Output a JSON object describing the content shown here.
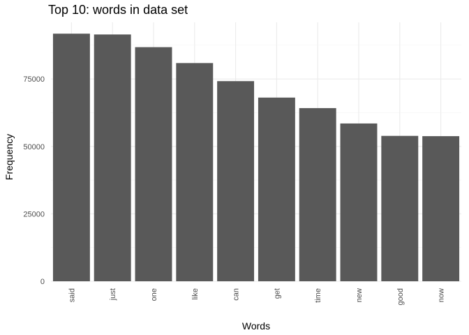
{
  "chart_data": {
    "type": "bar",
    "title": "Top 10: words in data set",
    "xlabel": "Words",
    "ylabel": "Frequency",
    "categories": [
      "said",
      "just",
      "one",
      "like",
      "can",
      "get",
      "time",
      "new",
      "good",
      "now"
    ],
    "values": [
      91800,
      91500,
      86800,
      80900,
      74200,
      68100,
      64200,
      58500,
      53900,
      53800
    ],
    "ylim": [
      0,
      96000
    ],
    "yticks": [
      0,
      25000,
      50000,
      75000
    ],
    "ytick_labels": [
      "0",
      "25000",
      "50000",
      "75000"
    ],
    "bar_color": "#595959",
    "grid": true,
    "theme": "minimal"
  }
}
